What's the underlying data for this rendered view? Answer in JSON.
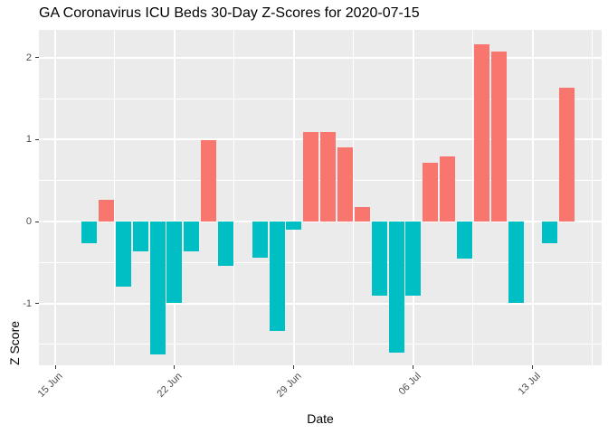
{
  "chart_data": {
    "type": "bar",
    "title": "GA Coronavirus ICU Beds 30-Day Z-Scores for 2020-07-15",
    "xlabel": "Date",
    "ylabel": "Z Score",
    "x": [
      "2020-06-16",
      "2020-06-17",
      "2020-06-18",
      "2020-06-19",
      "2020-06-20",
      "2020-06-21",
      "2020-06-22",
      "2020-06-23",
      "2020-06-24",
      "2020-06-25",
      "2020-06-26",
      "2020-06-27",
      "2020-06-28",
      "2020-06-29",
      "2020-06-30",
      "2020-07-01",
      "2020-07-02",
      "2020-07-03",
      "2020-07-04",
      "2020-07-05",
      "2020-07-06",
      "2020-07-07",
      "2020-07-08",
      "2020-07-09",
      "2020-07-10",
      "2020-07-11",
      "2020-07-12",
      "2020-07-13",
      "2020-07-14",
      "2020-07-15"
    ],
    "values": [
      0,
      -0.27,
      0.26,
      -0.8,
      -0.36,
      -1.62,
      -0.99,
      -0.36,
      0.99,
      -0.54,
      0,
      -0.44,
      -1.34,
      -0.1,
      1.09,
      1.09,
      0.91,
      0.18,
      -0.9,
      -1.6,
      -0.9,
      0.72,
      0.8,
      -0.45,
      2.16,
      2.08,
      -0.99,
      0,
      -0.26,
      1.63
    ],
    "x_ticks": [
      "2020-06-15",
      "2020-06-22",
      "2020-06-29",
      "2020-07-06",
      "2020-07-13"
    ],
    "x_tick_labels": [
      "15 Jun",
      "22 Jun",
      "29 Jun",
      "06 Jul",
      "13 Jul"
    ],
    "y_ticks": [
      -1,
      0,
      1,
      2
    ],
    "y_tick_labels": [
      "-1",
      "0",
      "1",
      "2"
    ],
    "y_minor_ticks": [
      -1.5,
      -0.5,
      0.5,
      1.5
    ],
    "ylim": [
      -1.75,
      2.34
    ],
    "grid": "white major+minor gridlines on gray panel",
    "legend": "none",
    "colors": {
      "positive": "#F8766D",
      "negative": "#00BFC4",
      "panel_bg": "#EBEBEB",
      "grid": "#FFFFFF",
      "tick_text": "#4D4D4D",
      "tick_mark": "#333333",
      "title_text": "#000000"
    }
  }
}
